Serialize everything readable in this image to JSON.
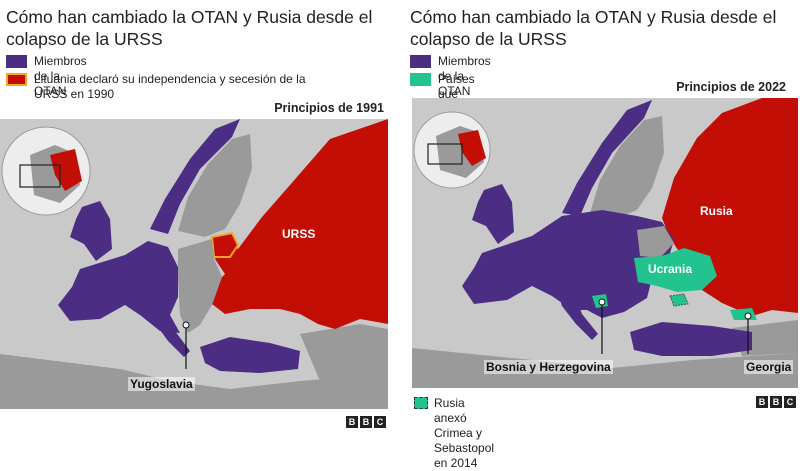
{
  "left_panel": {
    "title": "Cómo han cambiado la OTAN y Rusia desde el colapso de la URSS",
    "legend": [
      {
        "label": "Miembros de la OTAN",
        "color": "#4b2e83"
      },
      {
        "label": "Lituania declaró su independencia y secesión de la URSS en 1990",
        "color": "#c20e05",
        "border": "#f5a623"
      }
    ],
    "date_label": "Principios de 1991",
    "map_labels": {
      "urss": "URSS",
      "yugoslavia": "Yugoslavia"
    },
    "logo": [
      "B",
      "B",
      "C"
    ]
  },
  "right_panel": {
    "title": "Cómo han cambiado la OTAN y Rusia desde el colapso de la URSS",
    "legend": [
      {
        "label": "Miembros de la OTAN",
        "color": "#4b2e83"
      },
      {
        "label": "Países que aspiran a unirse a la OTAN",
        "color": "#22c38e"
      }
    ],
    "date_label": "Principios de 2022",
    "map_labels": {
      "rusia": "Rusia",
      "ucrania": "Ucrania",
      "bosnia": "Bosnia y Herzegovina",
      "georgia": "Georgia"
    },
    "footnote": "Rusia anexó Crimea y Sebastopol en 2014",
    "logo": [
      "B",
      "B",
      "C"
    ]
  },
  "colors": {
    "nato": "#4b2e83",
    "russia": "#c20e05",
    "aspirant": "#22c38e",
    "land": "#9a9a9a",
    "sea": "#c9c9c9"
  }
}
